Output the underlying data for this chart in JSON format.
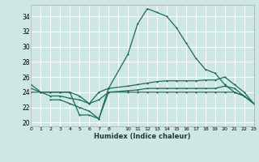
{
  "xlabel": "Humidex (Indice chaleur)",
  "xlim": [
    0,
    23
  ],
  "ylim": [
    19.5,
    35.5
  ],
  "yticks": [
    20,
    22,
    24,
    26,
    28,
    30,
    32,
    34
  ],
  "xtick_labels": [
    "0",
    "1",
    "2",
    "3",
    "4",
    "5",
    "6",
    "7",
    "8",
    "",
    "10",
    "11",
    "12",
    "13",
    "14",
    "15",
    "16",
    "17",
    "18",
    "19",
    "20",
    "21",
    "22",
    "23"
  ],
  "background_color": "#cde8e4",
  "grid_color": "#ffffff",
  "line_color": "#1a6b5a",
  "line1_x": [
    0,
    1,
    2,
    3,
    4,
    5,
    6,
    7,
    8,
    10,
    11,
    12,
    13,
    14,
    15,
    16,
    17,
    18,
    19,
    20,
    21,
    22,
    23
  ],
  "line1_y": [
    25.0,
    24.0,
    24.0,
    24.0,
    24.0,
    21.0,
    21.0,
    20.5,
    24.5,
    29.0,
    33.0,
    35.0,
    34.5,
    34.0,
    32.5,
    30.5,
    28.5,
    27.0,
    26.5,
    25.0,
    24.0,
    23.5,
    22.5
  ],
  "line2_x": [
    0,
    1,
    2,
    3,
    4,
    5,
    6,
    7,
    8,
    10,
    11,
    12,
    13,
    14,
    15,
    16,
    17,
    18,
    19,
    20,
    21,
    22,
    23
  ],
  "line2_y": [
    24.5,
    24.0,
    24.0,
    24.0,
    24.0,
    23.5,
    22.5,
    24.0,
    24.5,
    24.8,
    25.0,
    25.2,
    25.4,
    25.5,
    25.5,
    25.5,
    25.5,
    25.6,
    25.6,
    26.0,
    25.0,
    24.0,
    22.5
  ],
  "line3_x": [
    0,
    1,
    2,
    3,
    4,
    5,
    6,
    7,
    8,
    10,
    11,
    12,
    13,
    14,
    15,
    16,
    17,
    18,
    19,
    20,
    21,
    22,
    23
  ],
  "line3_y": [
    24.0,
    24.0,
    23.5,
    23.5,
    23.2,
    23.0,
    22.5,
    23.0,
    24.0,
    24.2,
    24.3,
    24.5,
    24.5,
    24.5,
    24.5,
    24.5,
    24.5,
    24.5,
    24.5,
    24.8,
    24.5,
    23.5,
    22.5
  ],
  "line4_x": [
    2,
    3,
    4,
    5,
    6,
    7,
    8,
    10,
    11,
    12,
    13,
    14,
    15,
    16,
    17,
    18,
    19,
    20,
    21,
    22,
    23
  ],
  "line4_y": [
    23.0,
    23.0,
    22.5,
    22.0,
    21.5,
    20.5,
    24.0,
    24.0,
    24.0,
    24.0,
    24.0,
    24.0,
    24.0,
    24.0,
    24.0,
    24.0,
    24.0,
    24.0,
    24.0,
    23.5,
    22.5
  ]
}
